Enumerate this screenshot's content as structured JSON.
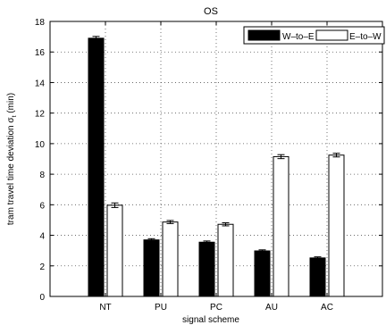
{
  "chart_data": {
    "type": "bar",
    "title": "OS",
    "xlabel": "signal scheme",
    "ylabel": "tram travel time deviation σ",
    "ylabel_subscript": "t",
    "ylabel_unit": " (min)",
    "categories": [
      "NT",
      "PU",
      "PC",
      "AU",
      "AC"
    ],
    "series": [
      {
        "name": "W–to–E",
        "color": "#000000",
        "values": [
          16.9,
          3.7,
          3.55,
          2.98,
          2.52
        ],
        "errors": [
          0.12,
          0.08,
          0.08,
          0.07,
          0.07
        ]
      },
      {
        "name": "E–to–W",
        "color": "#ffffff",
        "values": [
          5.97,
          4.87,
          4.72,
          9.15,
          9.25
        ],
        "errors": [
          0.15,
          0.1,
          0.1,
          0.13,
          0.12
        ]
      }
    ],
    "ylim": [
      0,
      18
    ],
    "yticks": [
      0,
      2,
      4,
      6,
      8,
      10,
      12,
      14,
      16,
      18
    ],
    "grid": true,
    "legend_position": "top-right"
  }
}
